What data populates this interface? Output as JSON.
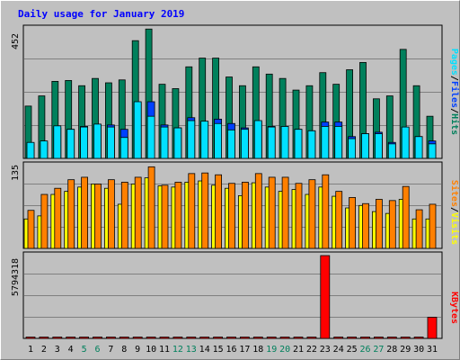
{
  "title": "Daily usage for January 2019",
  "colors": {
    "hits": "#00805c",
    "files": "#0040ff",
    "pages": "#00e0ff",
    "visits": "#ffff00",
    "sites": "#ff8000",
    "kbytes": "#ff0000",
    "title": "#0000ff",
    "weekend": "#00805c",
    "weekday": "#000000",
    "panel": "#c0c0c0",
    "grid": "#808080"
  },
  "labels": {
    "pages": "Pages",
    "files": "Files",
    "hits": "Hits",
    "visits": "Visits",
    "sites": "Sites",
    "kbytes": "KBytes",
    "sep": "/"
  },
  "chart_data": {
    "type": "bar",
    "title": "Daily usage for January 2019",
    "days": [
      "1",
      "2",
      "3",
      "4",
      "5",
      "6",
      "7",
      "8",
      "9",
      "10",
      "11",
      "12",
      "13",
      "14",
      "15",
      "16",
      "17",
      "18",
      "19",
      "20",
      "21",
      "22",
      "23",
      "24",
      "25",
      "26",
      "27",
      "28",
      "29",
      "30",
      "31"
    ],
    "weekend_days": [
      "5",
      "6",
      "12",
      "13",
      "19",
      "20",
      "26",
      "27"
    ],
    "panels": [
      {
        "name": "hits-files-pages",
        "ymax_label": "452",
        "ymax": 452,
        "series": [
          {
            "name": "Hits",
            "values": [
              180,
              215,
              265,
              268,
              250,
              275,
              260,
              270,
              405,
              445,
              255,
              240,
              315,
              345,
              345,
              280,
              250,
              315,
              290,
              275,
              235,
              250,
              295,
              255,
              305,
              330,
              205,
              215,
              375,
              250,
              145
            ]
          },
          {
            "name": "Files",
            "values": [
              50,
              55,
              105,
              100,
              110,
              115,
              115,
              100,
              190,
              195,
              115,
              105,
              140,
              125,
              135,
              120,
              105,
              125,
              110,
              110,
              100,
              95,
              125,
              125,
              75,
              85,
              90,
              55,
              105,
              75,
              60
            ]
          },
          {
            "name": "Pages",
            "values": [
              55,
              60,
              112,
              100,
              108,
              118,
              108,
              72,
              195,
              145,
              108,
              105,
              130,
              128,
              120,
              98,
              100,
              130,
              108,
              110,
              100,
              95,
              110,
              110,
              68,
              85,
              85,
              50,
              108,
              75,
              50
            ]
          }
        ]
      },
      {
        "name": "sites-visits",
        "ymax_label": "135",
        "ymax": 135,
        "series": [
          {
            "name": "Visits",
            "values": [
              48,
              53,
              88,
              93,
              100,
              105,
              98,
              72,
              105,
              115,
              102,
              100,
              108,
              110,
              103,
              98,
              86,
              107,
              100,
              93,
              96,
              88,
              100,
              85,
              66,
              70,
              60,
              57,
              80,
              48,
              48
            ]
          },
          {
            "name": "Sites",
            "values": [
              62,
              88,
              98,
              112,
              116,
              105,
              112,
              108,
              116,
              133,
              103,
              108,
              122,
              123,
              120,
              106,
              108,
              122,
              116,
              116,
              106,
              112,
              120,
              93,
              83,
              73,
              80,
              78,
              101,
              63,
              72
            ]
          }
        ]
      },
      {
        "name": "kbytes",
        "ymax_label": "5794318",
        "ymax": 5794318,
        "series": [
          {
            "name": "KBytes",
            "values": [
              60000,
              60000,
              60000,
              60000,
              60000,
              60000,
              60000,
              60000,
              60000,
              60000,
              60000,
              60000,
              60000,
              60000,
              60000,
              60000,
              60000,
              60000,
              60000,
              60000,
              60000,
              60000,
              5794318,
              60000,
              60000,
              60000,
              60000,
              60000,
              60000,
              60000,
              1480000
            ]
          }
        ]
      }
    ]
  }
}
